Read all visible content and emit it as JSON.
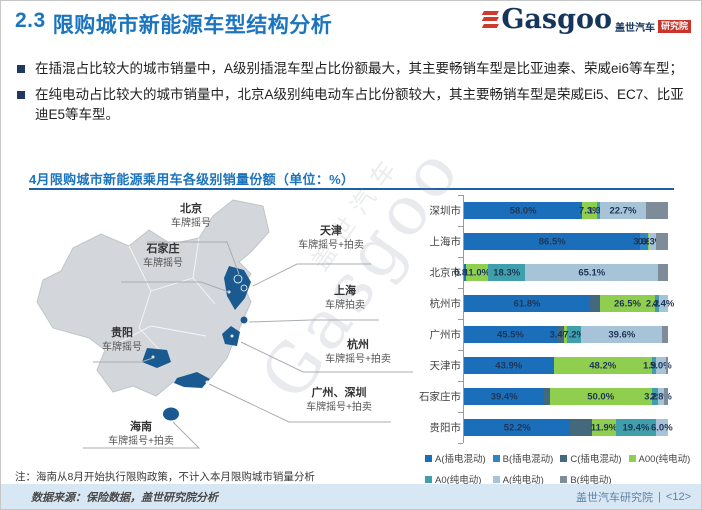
{
  "slide": {
    "title_prefix": "2.3",
    "title": "限购城市新能源车型结构分析"
  },
  "logo": {
    "brand_cn": "盖世汽车",
    "badge": "研究院",
    "brand_word": "Gasgoo"
  },
  "bullets": [
    "在插混占比较大的城市销量中，A级别插混车型占比份额最大，其主要畅销车型是比亚迪秦、荣威ei6等车型；",
    "在纯电动占比较大的城市销量中，北京A级别纯电动车占比份额较大，其主要畅销车型是荣威Ei5、EC7、比亚迪E5等车型。"
  ],
  "chart": {
    "title": "4月限购城市新能源乘用车各级别销量份额（单位：%）"
  },
  "map": {
    "callouts": [
      {
        "city": "北京",
        "policy": "车牌摇号"
      },
      {
        "city": "天津",
        "policy": "车牌摇号+拍卖"
      },
      {
        "city": "石家庄",
        "policy": "车牌摇号"
      },
      {
        "city": "上海",
        "policy": "车牌拍卖"
      },
      {
        "city": "贵阳",
        "policy": "车牌摇号"
      },
      {
        "city": "杭州",
        "policy": "车牌摇号+拍卖"
      },
      {
        "city": "广州、深圳",
        "policy": "车牌摇号+拍卖"
      },
      {
        "city": "海南",
        "policy": "车牌摇号+拍卖"
      }
    ]
  },
  "chart_data": {
    "type": "bar",
    "stacked": true,
    "orientation": "horizontal",
    "unit": "%",
    "title": "4月限购城市新能源乘用车各级别销量份额（单位：%）",
    "xlim": [
      0,
      100
    ],
    "categories": [
      "深圳市",
      "上海市",
      "北京市",
      "杭州市",
      "广州市",
      "天津市",
      "石家庄市",
      "贵阳市"
    ],
    "series": [
      {
        "name": "A(插电混动)",
        "color": "#1b6fba",
        "values": [
          58.0,
          86.5,
          0.8,
          61.8,
          45.5,
          43.9,
          39.4,
          52.2
        ]
      },
      {
        "name": "B(插电混动)",
        "color": "#2f86c4",
        "values": [
          0,
          3.6,
          0,
          0,
          0,
          0,
          0,
          0
        ]
      },
      {
        "name": "C(插电混动)",
        "color": "#44697d",
        "values": [
          0,
          0,
          0,
          5.1,
          3.4,
          0,
          2.6,
          10.5
        ]
      },
      {
        "name": "A00(纯电动)",
        "color": "#8fce4e",
        "values": [
          7.3,
          0.6,
          11.0,
          26.5,
          1.5,
          48.2,
          50.0,
          11.9
        ]
      },
      {
        "name": "A0(纯电动)",
        "color": "#3fa0ac",
        "values": [
          1.3,
          0,
          18.3,
          2.2,
          7.2,
          1.9,
          3.2,
          19.4
        ]
      },
      {
        "name": "A(纯电动)",
        "color": "#a6c3d8",
        "values": [
          22.7,
          3.3,
          65.1,
          4.4,
          39.6,
          5.0,
          2.8,
          6.0
        ]
      },
      {
        "name": "B(纯电动)",
        "color": "#7e8c99",
        "values": [
          10.7,
          6.0,
          4.8,
          0,
          2.8,
          1.0,
          2.0,
          0
        ]
      }
    ],
    "segment_labels": [
      [
        "58.0%",
        "",
        "",
        "7.3%",
        "1.3%",
        "22.7%",
        ""
      ],
      [
        "86.5%",
        "3.6%",
        "",
        "0.6%",
        "",
        "3.3%",
        ""
      ],
      [
        "0.8%",
        "",
        "",
        "11.0%",
        "18.3%",
        "65.1%",
        ""
      ],
      [
        "61.8%",
        "",
        "",
        "26.5%",
        "2.2%",
        "4.4%",
        ""
      ],
      [
        "45.5%",
        "",
        "3.4%",
        "",
        "7.2%",
        "39.6%",
        ""
      ],
      [
        "43.9%",
        "",
        "",
        "48.2%",
        "1.9%",
        "5.0%",
        ""
      ],
      [
        "39.4%",
        "",
        "",
        "50.0%",
        "3.2%",
        "2.8%",
        ""
      ],
      [
        "52.2%",
        "",
        "",
        "11.9%",
        "19.4%",
        "6.0%",
        ""
      ]
    ],
    "legend_position": "bottom",
    "grid": false
  },
  "watermark": {
    "en": "Gasgoo",
    "cn": "盖世汽车"
  },
  "note": "注：海南从8月开始执行限购政策，不计入本月限购城市销量分析",
  "footer": {
    "source": "数据来源：保险数据，盖世研究院分析",
    "org": "盖世汽车研究院",
    "divider": "|",
    "page": "<12>"
  },
  "colors": {
    "title_blue": "#1b74be",
    "map_highlight": "#1a5a90",
    "map_base": "#d3d7db",
    "footer_bg": "#d8e7f4",
    "logo_red": "#cf3a2e"
  }
}
